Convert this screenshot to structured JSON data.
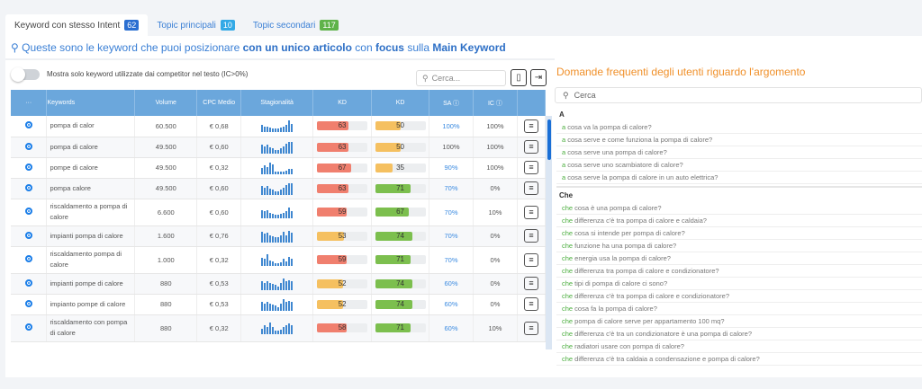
{
  "tabs": [
    {
      "label": "Keyword con stesso Intent",
      "count": "62",
      "color": "#2b6fd1"
    },
    {
      "label": "Topic principali",
      "count": "10",
      "color": "#33a9e6"
    },
    {
      "label": "Topic secondari",
      "count": "117",
      "color": "#5fb34a"
    }
  ],
  "heading": {
    "p1": "Queste sono le keyword che puoi posizionare ",
    "b1": "con un unico articolo",
    "p2": " con ",
    "b2": "focus",
    "p3": " sulla ",
    "b3": "Main Keyword"
  },
  "toggle_label": "Mostra solo keyword utilizzate dai competitor nel testo (IC>0%)",
  "table_search_placeholder": "Cerca...",
  "columns": [
    "···",
    "Keywords",
    "Volume",
    "CPC Medio",
    "Stagionalità",
    "KD",
    "KD",
    "SA ⓘ",
    "IC ⓘ",
    ""
  ],
  "colors": {
    "red": "#f07f6e",
    "yellow": "#f5c060",
    "green": "#7cbf4e",
    "header": "#6ba7dc"
  },
  "rows": [
    {
      "keyword": "pompa di calor",
      "volume": "60.500",
      "cpc": "€ 0,68",
      "season": [
        6,
        5,
        5,
        4,
        3,
        3,
        3,
        4,
        5,
        6,
        10,
        7
      ],
      "kd1": 63,
      "c1": "red",
      "kd2": 50,
      "c2": "yellow",
      "sa": "100%",
      "sa_link": true,
      "ic": "100%"
    },
    {
      "keyword": "pompa di calore",
      "volume": "49.500",
      "cpc": "€ 0,60",
      "season": [
        7,
        6,
        7,
        5,
        4,
        3,
        3,
        4,
        6,
        8,
        10,
        10
      ],
      "kd1": 63,
      "c1": "red",
      "kd2": 50,
      "c2": "yellow",
      "sa": "100%",
      "sa_link": false,
      "ic": "100%"
    },
    {
      "keyword": "pompe di calore",
      "volume": "49.500",
      "cpc": "€ 0,32",
      "season": [
        5,
        7,
        6,
        10,
        8,
        2,
        2,
        2,
        2,
        3,
        4,
        4
      ],
      "kd1": 67,
      "c1": "red",
      "kd2": 35,
      "c2": "yellow",
      "sa": "90%",
      "sa_link": true,
      "ic": "100%"
    },
    {
      "keyword": "pompa calore",
      "volume": "49.500",
      "cpc": "€ 0,60",
      "season": [
        7,
        6,
        7,
        5,
        4,
        3,
        3,
        4,
        6,
        8,
        10,
        10
      ],
      "kd1": 63,
      "c1": "red",
      "kd2": 71,
      "c2": "green",
      "sa": "70%",
      "sa_link": true,
      "ic": "0%"
    },
    {
      "keyword": "riscaldamento a pompa di calore",
      "volume": "6.600",
      "cpc": "€ 0,60",
      "season": [
        7,
        6,
        7,
        5,
        4,
        3,
        3,
        4,
        5,
        6,
        9,
        6
      ],
      "kd1": 59,
      "c1": "red",
      "kd2": 67,
      "c2": "green",
      "sa": "70%",
      "sa_link": true,
      "ic": "10%"
    },
    {
      "keyword": "impianti pompa di calore",
      "volume": "1.600",
      "cpc": "€ 0,76",
      "season": [
        9,
        7,
        8,
        6,
        5,
        4,
        4,
        6,
        9,
        6,
        10,
        8
      ],
      "kd1": 53,
      "c1": "yellow",
      "kd2": 74,
      "c2": "green",
      "sa": "70%",
      "sa_link": true,
      "ic": "0%"
    },
    {
      "keyword": "riscaldamento pompa di calore",
      "volume": "1.000",
      "cpc": "€ 0,32",
      "season": [
        7,
        6,
        10,
        5,
        4,
        2,
        2,
        3,
        6,
        4,
        8,
        6
      ],
      "kd1": 59,
      "c1": "red",
      "kd2": 71,
      "c2": "green",
      "sa": "70%",
      "sa_link": true,
      "ic": "0%"
    },
    {
      "keyword": "impianti pompe di calore",
      "volume": "880",
      "cpc": "€ 0,53",
      "season": [
        7,
        6,
        7,
        6,
        5,
        4,
        3,
        6,
        10,
        7,
        8,
        7
      ],
      "kd1": 52,
      "c1": "yellow",
      "kd2": 74,
      "c2": "green",
      "sa": "60%",
      "sa_link": true,
      "ic": "0%"
    },
    {
      "keyword": "impianto pompe di calore",
      "volume": "880",
      "cpc": "€ 0,53",
      "season": [
        7,
        6,
        7,
        6,
        5,
        4,
        3,
        6,
        10,
        7,
        8,
        7
      ],
      "kd1": 52,
      "c1": "yellow",
      "kd2": 74,
      "c2": "green",
      "sa": "60%",
      "sa_link": true,
      "ic": "0%"
    },
    {
      "keyword": "riscaldamento con pompa di calore",
      "volume": "880",
      "cpc": "€ 0,32",
      "season": [
        5,
        8,
        6,
        10,
        6,
        3,
        3,
        4,
        6,
        8,
        9,
        8
      ],
      "kd1": 58,
      "c1": "red",
      "kd2": 71,
      "c2": "green",
      "sa": "60%",
      "sa_link": true,
      "ic": "10%"
    }
  ],
  "faq": {
    "title": "Domande frequenti degli utenti riguardo l'argomento",
    "search_placeholder": "Cerca",
    "sections": [
      {
        "letter": "A",
        "questions": [
          [
            "a",
            " cosa va la pompa di calore?"
          ],
          [
            "a",
            " cosa serve e come funziona la pompa di calore?"
          ],
          [
            "a",
            " cosa serve una pompa di calore?"
          ],
          [
            "a",
            " cosa serve uno scambiatore di calore?"
          ],
          [
            "a",
            " cosa serve la pompa di calore in un auto elettrica?"
          ]
        ]
      },
      {
        "letter": "Che",
        "questions": [
          [
            "che",
            " cosa è una pompa di calore?"
          ],
          [
            "che",
            " differenza c'è tra pompa di calore e caldaia?"
          ],
          [
            "che",
            " cosa si intende per pompa di calore?"
          ],
          [
            "che",
            " funzione ha una pompa di calore?"
          ],
          [
            "che",
            " energia usa la pompa di calore?"
          ],
          [
            "che",
            " differenza tra pompa di calore e condizionatore?"
          ],
          [
            "che",
            " tipi di pompa di calore ci sono?"
          ],
          [
            "che",
            " differenza c'è tra pompa di calore e condizionatore?"
          ],
          [
            "che",
            " cosa fa la pompa di calore?"
          ],
          [
            "che",
            " pompa di calore serve per appartamento 100 mq?"
          ],
          [
            "che",
            " differenza c'è tra un condizionatore è una pompa di calore?"
          ],
          [
            "che",
            " radiatori usare con pompa di calore?"
          ],
          [
            "che",
            " differenza c'è tra caldaia a condensazione e pompa di calore?"
          ]
        ]
      }
    ]
  }
}
